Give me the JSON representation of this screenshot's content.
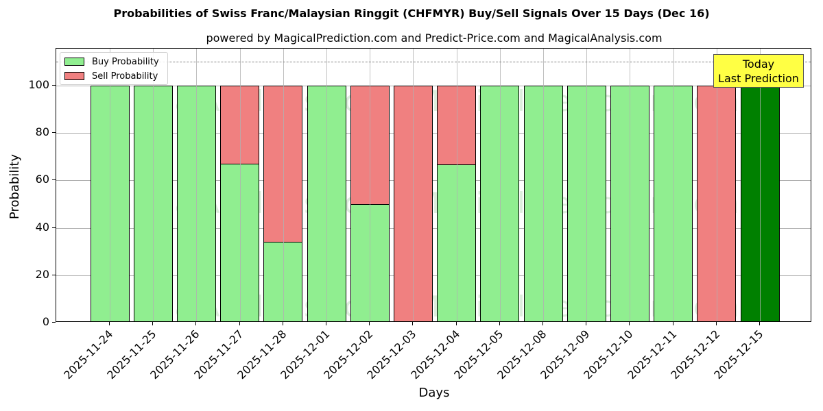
{
  "chart_data": {
    "type": "bar",
    "stacked": true,
    "title": "Probabilities of Swiss Franc/Malaysian Ringgit (CHFMYR) Buy/Sell Signals Over 15 Days (Dec 16)",
    "subtitle": "powered by MagicalPrediction.com and Predict-Price.com and MagicalAnalysis.com",
    "xlabel": "Days",
    "ylabel": "Probability",
    "ylim": [
      0,
      115
    ],
    "yticks": [
      0,
      20,
      40,
      60,
      80,
      100
    ],
    "grid": true,
    "legend_position": "upper left",
    "reference_line": {
      "y": 110,
      "style": "dashed",
      "color": "#808080"
    },
    "categories": [
      "2025-11-24",
      "2025-11-25",
      "2025-11-26",
      "2025-11-27",
      "2025-11-28",
      "2025-12-01",
      "2025-12-02",
      "2025-12-03",
      "2025-12-04",
      "2025-12-05",
      "2025-12-08",
      "2025-12-09",
      "2025-12-10",
      "2025-12-11",
      "2025-12-12",
      "2025-12-15"
    ],
    "series": [
      {
        "name": "Buy Probability",
        "color": "#90ee90",
        "values": [
          100,
          100,
          100,
          67,
          34,
          100,
          50,
          0,
          66.7,
          100,
          100,
          100,
          100,
          100,
          0,
          100
        ]
      },
      {
        "name": "Sell Probability",
        "color": "#f08080",
        "values": [
          0,
          0,
          0,
          33,
          66,
          0,
          50,
          100,
          33.3,
          0,
          0,
          0,
          0,
          0,
          100,
          0
        ]
      }
    ],
    "highlight": {
      "index": 15,
      "color": "#008000",
      "annotation": [
        "Today",
        "Last Prediction"
      ],
      "annotation_bg": "#ffff44"
    },
    "watermarks": [
      "MagicalAnalysis.com",
      "MagicalPrediction.com"
    ]
  }
}
